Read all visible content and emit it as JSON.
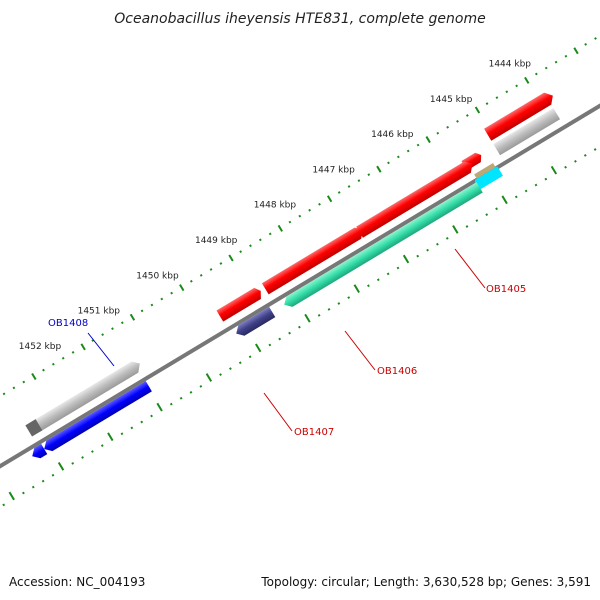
{
  "title": "Oceanobacillus iheyensis HTE831, complete genome",
  "ruler_ticks": [
    "1444 kbp",
    "1445 kbp",
    "1446 kbp",
    "1447 kbp",
    "1448 kbp",
    "1449 kbp",
    "1450 kbp",
    "1451 kbp",
    "1452 kbp"
  ],
  "gene_labels": {
    "OB1405": "OB1405",
    "OB1406": "OB1406",
    "OB1407": "OB1407",
    "OB1408": "OB1408"
  },
  "colors": {
    "forward_red": "#ff0000",
    "forward_gray": "#b9b9b9",
    "reverse_blue": "#0000ff",
    "reverse_green": "#33ddaa",
    "reverse_indigo": "#404088",
    "reverse_cyan": "#00e5ff",
    "tan": "#bba878",
    "tick_green": "#1a8a1a",
    "backbone": "#777777",
    "label_red": "#cc0000",
    "label_blue": "#0000cc"
  },
  "footer": {
    "accession": "Accession: NC_004193",
    "summary": "Topology: circular; Length: 3,630,528 bp; Genes: 3,591"
  }
}
